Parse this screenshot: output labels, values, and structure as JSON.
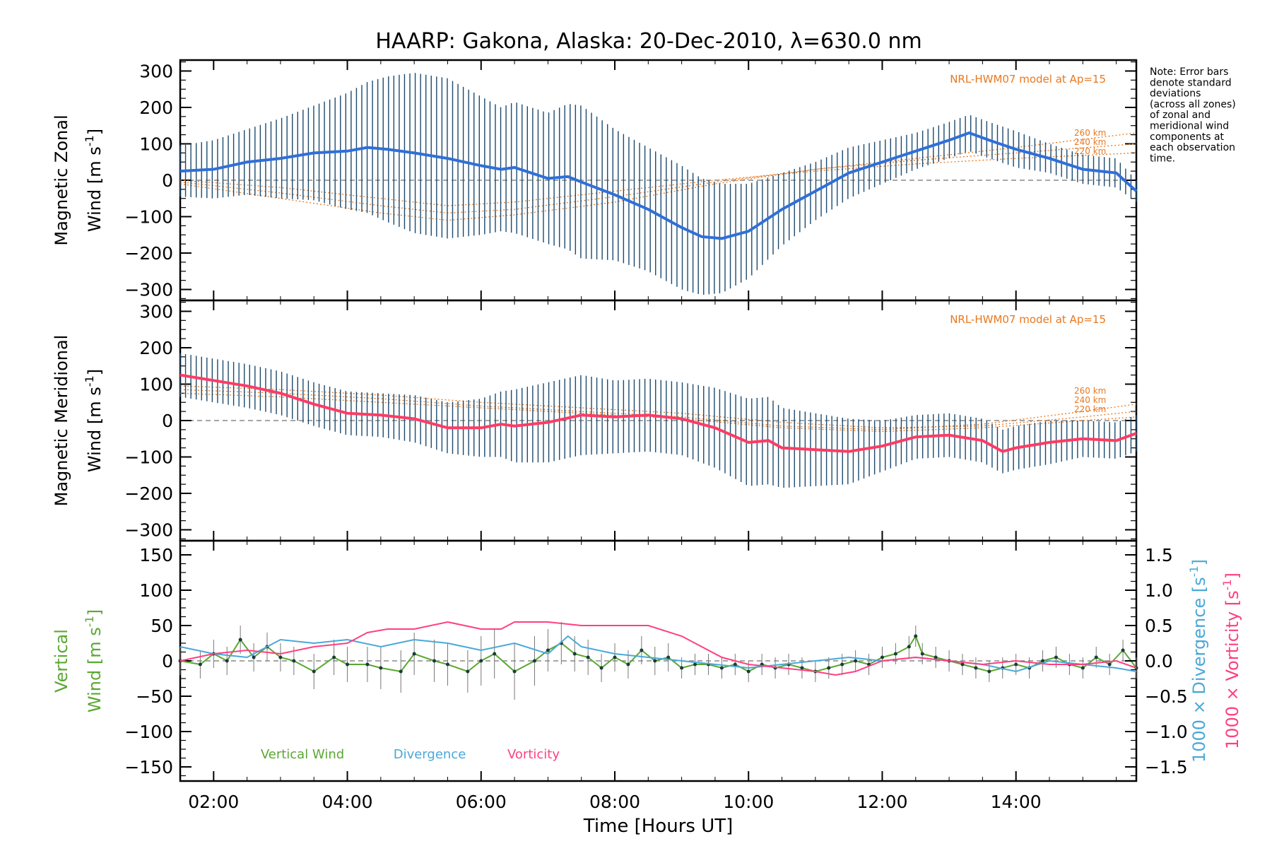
{
  "title": "HAARP: Gakona,  Alaska: 20-Dec-2010, λ=630.0 nm",
  "note_lines": [
    "Note: Error bars",
    "denote standard",
    "deviations",
    "(across all zones)",
    "of zonal and",
    "meridional wind",
    "components at",
    "each observation",
    "time."
  ],
  "colors": {
    "zonal_line": "#2f6fd8",
    "meridional_line": "#ff3b63",
    "vertical_line": "#5aa832",
    "divergence_line": "#4aa8d8",
    "vorticity_line": "#ff4080",
    "model": "#e87820",
    "error_bar": "#1c4a6e"
  },
  "chart_data": [
    {
      "type": "line",
      "panel": "zonal",
      "ylabel": [
        "Magnetic Zonal",
        "Wind [m s-1]"
      ],
      "ylim": [
        -330,
        330
      ],
      "yticks": [
        300,
        200,
        100,
        0,
        -100,
        -200,
        -300
      ],
      "xlim": [
        1.5,
        15.8
      ],
      "model_label": "NRL-HWM07 model at Ap=15",
      "model_heights": [
        "260 km",
        "240 km",
        "220 km"
      ],
      "series": [
        {
          "x": [
            1.5,
            2.0,
            2.5,
            3.0,
            3.5,
            4.0,
            4.3,
            4.6,
            5.0,
            5.5,
            6.0,
            6.3,
            6.5,
            7.0,
            7.3,
            7.5,
            8.0,
            8.5,
            9.0,
            9.3,
            9.6,
            10.0,
            10.5,
            11.0,
            11.5,
            12.0,
            12.5,
            13.0,
            13.3,
            13.6,
            14.0,
            14.5,
            15.0,
            15.5,
            15.8
          ],
          "y": [
            25,
            30,
            50,
            60,
            75,
            80,
            90,
            85,
            75,
            60,
            40,
            30,
            35,
            5,
            10,
            -5,
            -40,
            -80,
            -130,
            -155,
            -160,
            -140,
            -80,
            -30,
            20,
            50,
            80,
            110,
            130,
            110,
            85,
            60,
            30,
            20,
            -30
          ],
          "err": [
            70,
            80,
            90,
            110,
            130,
            160,
            180,
            200,
            220,
            220,
            190,
            170,
            180,
            180,
            200,
            210,
            180,
            170,
            170,
            160,
            150,
            130,
            100,
            80,
            70,
            60,
            50,
            50,
            50,
            50,
            50,
            40,
            40,
            40,
            30
          ]
        }
      ],
      "model_curves": [
        {
          "x": [
            1.5,
            3.0,
            4.5,
            5.5,
            6.5,
            8.0,
            9.5,
            11.0,
            12.5,
            14.0,
            15.8
          ],
          "y": [
            -10,
            -50,
            -90,
            -110,
            -95,
            -60,
            -10,
            30,
            60,
            90,
            130
          ]
        },
        {
          "x": [
            1.5,
            3.0,
            4.5,
            5.5,
            6.5,
            8.0,
            9.5,
            11.0,
            12.5,
            14.0,
            15.8
          ],
          "y": [
            -5,
            -35,
            -70,
            -90,
            -80,
            -45,
            -5,
            30,
            55,
            75,
            100
          ]
        },
        {
          "x": [
            1.5,
            3.0,
            4.5,
            5.5,
            6.5,
            8.0,
            9.5,
            11.0,
            12.5,
            14.0,
            15.8
          ],
          "y": [
            0,
            -20,
            -50,
            -70,
            -60,
            -30,
            0,
            25,
            45,
            60,
            75
          ]
        }
      ]
    },
    {
      "type": "line",
      "panel": "meridional",
      "ylabel": [
        "Magnetic Meridional",
        "Wind [m s-1]"
      ],
      "ylim": [
        -330,
        330
      ],
      "yticks": [
        300,
        200,
        100,
        0,
        -100,
        -200,
        -300
      ],
      "xlim": [
        1.5,
        15.8
      ],
      "model_label": "NRL-HWM07 model at Ap=15",
      "model_heights": [
        "260 km",
        "240 km",
        "220 km"
      ],
      "series": [
        {
          "x": [
            1.5,
            2.0,
            2.5,
            3.0,
            3.5,
            4.0,
            4.5,
            5.0,
            5.5,
            6.0,
            6.3,
            6.5,
            7.0,
            7.5,
            8.0,
            8.5,
            9.0,
            9.5,
            10.0,
            10.3,
            10.5,
            11.0,
            11.5,
            12.0,
            12.5,
            13.0,
            13.5,
            13.8,
            14.0,
            14.5,
            15.0,
            15.5,
            15.8
          ],
          "y": [
            125,
            110,
            95,
            75,
            45,
            20,
            15,
            5,
            -20,
            -20,
            -10,
            -15,
            -5,
            15,
            10,
            15,
            5,
            -20,
            -60,
            -55,
            -75,
            -80,
            -85,
            -70,
            -45,
            -40,
            -55,
            -85,
            -75,
            -60,
            -50,
            -55,
            -35
          ],
          "err": [
            60,
            60,
            60,
            60,
            60,
            60,
            60,
            65,
            70,
            80,
            90,
            100,
            110,
            110,
            100,
            100,
            100,
            110,
            120,
            120,
            110,
            100,
            90,
            70,
            60,
            60,
            60,
            60,
            60,
            60,
            50,
            50,
            50
          ]
        }
      ],
      "model_curves": [
        {
          "x": [
            1.5,
            3.0,
            4.5,
            6.0,
            7.5,
            9.0,
            10.5,
            12.0,
            13.5,
            15.0,
            15.8
          ],
          "y": [
            85,
            75,
            60,
            40,
            25,
            10,
            -15,
            -25,
            -10,
            25,
            45
          ]
        },
        {
          "x": [
            1.5,
            3.0,
            4.5,
            6.0,
            7.5,
            9.0,
            10.5,
            12.0,
            13.5,
            15.0,
            15.8
          ],
          "y": [
            95,
            85,
            70,
            50,
            35,
            20,
            -5,
            -20,
            -15,
            10,
            25
          ]
        },
        {
          "x": [
            1.5,
            3.0,
            4.5,
            6.0,
            7.5,
            9.0,
            10.5,
            12.0,
            13.5,
            15.0,
            15.8
          ],
          "y": [
            75,
            65,
            50,
            35,
            20,
            5,
            -20,
            -30,
            -20,
            0,
            10
          ]
        }
      ]
    },
    {
      "type": "line",
      "panel": "vertical",
      "ylabel": [
        "Vertical",
        "Wind [m s-1]"
      ],
      "ylabel_right_1": "1000 × Divergence [s-1]",
      "ylabel_right_2": "1000 × Vorticity [s-1]",
      "ylim": [
        -170,
        170
      ],
      "yticks": [
        150,
        100,
        50,
        0,
        -50,
        -100,
        -150
      ],
      "y2lim": [
        -1.7,
        1.7
      ],
      "y2ticks": [
        "1.5",
        "1.0",
        "0.5",
        "0.0",
        "−0.5",
        "−1.0",
        "−1.5"
      ],
      "xlim": [
        1.5,
        15.8
      ],
      "xticks": [
        "02:00",
        "04:00",
        "06:00",
        "08:00",
        "10:00",
        "12:00",
        "14:00"
      ],
      "xtick_values": [
        2,
        4,
        6,
        8,
        10,
        12,
        14
      ],
      "xlabel": "Time [Hours UT]",
      "legend": [
        "Vertical Wind",
        "Divergence",
        "Vorticity"
      ],
      "series": [
        {
          "name": "Vertical Wind",
          "x": [
            1.5,
            1.8,
            2.0,
            2.2,
            2.4,
            2.6,
            2.8,
            3.0,
            3.2,
            3.5,
            3.8,
            4.0,
            4.3,
            4.5,
            4.8,
            5.0,
            5.3,
            5.5,
            5.8,
            6.0,
            6.2,
            6.5,
            6.8,
            7.0,
            7.2,
            7.4,
            7.6,
            7.8,
            8.0,
            8.2,
            8.4,
            8.6,
            8.8,
            9.0,
            9.2,
            9.4,
            9.6,
            9.8,
            10.0,
            10.2,
            10.4,
            10.6,
            10.8,
            11.0,
            11.2,
            11.4,
            11.6,
            11.8,
            12.0,
            12.2,
            12.4,
            12.5,
            12.6,
            12.8,
            13.0,
            13.2,
            13.4,
            13.6,
            13.8,
            14.0,
            14.2,
            14.4,
            14.6,
            14.8,
            15.0,
            15.2,
            15.4,
            15.6,
            15.8
          ],
          "y": [
            0,
            -5,
            10,
            0,
            30,
            5,
            20,
            5,
            0,
            -15,
            5,
            -5,
            -5,
            -10,
            -15,
            10,
            0,
            -5,
            -15,
            0,
            10,
            -15,
            0,
            15,
            25,
            10,
            5,
            -10,
            5,
            -5,
            15,
            0,
            5,
            -10,
            -5,
            -5,
            -10,
            -5,
            -15,
            -5,
            -10,
            -5,
            -10,
            -15,
            -10,
            -5,
            0,
            -5,
            5,
            10,
            20,
            35,
            10,
            5,
            0,
            -5,
            -10,
            -15,
            -10,
            -5,
            -10,
            0,
            5,
            -5,
            -10,
            5,
            -5,
            15,
            -10
          ],
          "err": [
            20,
            20,
            20,
            20,
            20,
            20,
            20,
            20,
            20,
            25,
            25,
            25,
            25,
            30,
            30,
            30,
            30,
            30,
            30,
            35,
            35,
            40,
            35,
            30,
            30,
            25,
            25,
            20,
            20,
            20,
            20,
            20,
            20,
            15,
            15,
            15,
            15,
            15,
            15,
            15,
            15,
            15,
            15,
            15,
            15,
            15,
            15,
            15,
            15,
            15,
            15,
            15,
            15,
            15,
            15,
            15,
            15,
            15,
            15,
            15,
            15,
            15,
            15,
            15,
            15,
            15,
            15,
            15,
            15
          ]
        },
        {
          "name": "Divergence",
          "x": [
            1.5,
            2.0,
            2.5,
            3.0,
            3.5,
            4.0,
            4.5,
            5.0,
            5.5,
            6.0,
            6.5,
            7.0,
            7.3,
            7.5,
            8.0,
            8.5,
            9.0,
            9.5,
            10.0,
            10.5,
            11.0,
            11.5,
            12.0,
            12.5,
            13.0,
            13.5,
            14.0,
            14.5,
            15.0,
            15.5,
            15.8
          ],
          "y": [
            0.2,
            0.1,
            0.05,
            0.3,
            0.25,
            0.3,
            0.2,
            0.3,
            0.25,
            0.15,
            0.25,
            0.1,
            0.35,
            0.2,
            0.1,
            0.05,
            0.0,
            -0.05,
            -0.1,
            -0.05,
            0.0,
            0.05,
            0.0,
            0.05,
            0.0,
            -0.05,
            -0.15,
            0.0,
            -0.05,
            -0.1,
            -0.15
          ]
        },
        {
          "name": "Vorticity",
          "x": [
            1.5,
            2.0,
            2.5,
            3.0,
            3.5,
            4.0,
            4.3,
            4.6,
            5.0,
            5.5,
            6.0,
            6.3,
            6.5,
            7.0,
            7.5,
            8.0,
            8.5,
            9.0,
            9.3,
            9.6,
            10.0,
            10.5,
            11.0,
            11.3,
            11.6,
            12.0,
            12.5,
            13.0,
            13.5,
            14.0,
            14.5,
            15.0,
            15.5,
            15.8
          ],
          "y": [
            0.0,
            0.1,
            0.15,
            0.1,
            0.2,
            0.25,
            0.4,
            0.45,
            0.45,
            0.55,
            0.45,
            0.45,
            0.55,
            0.55,
            0.5,
            0.5,
            0.5,
            0.35,
            0.2,
            0.05,
            -0.05,
            -0.1,
            -0.15,
            -0.2,
            -0.15,
            0.0,
            0.05,
            0.0,
            -0.05,
            0.0,
            -0.05,
            -0.05,
            0.0,
            -0.1
          ]
        }
      ]
    }
  ]
}
